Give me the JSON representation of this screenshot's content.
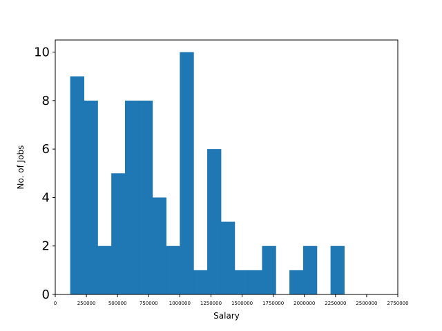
{
  "chart_data": {
    "type": "bar",
    "title": "",
    "xlabel": "Salary",
    "ylabel": "No. of Jobs",
    "bar_color": "#1f77b4",
    "grid": false,
    "xlim": [
      0,
      2750000
    ],
    "ylim": [
      0,
      10.5
    ],
    "x_ticks": [
      0,
      250000,
      500000,
      750000,
      1000000,
      1250000,
      1500000,
      1750000,
      2000000,
      2250000,
      2500000,
      2750000
    ],
    "x_tick_labels": [
      "0",
      "250000",
      "500000",
      "750000",
      "1000000",
      "1250000",
      "1500000",
      "1750000",
      "2000000",
      "2250000",
      "2500000",
      "2750000"
    ],
    "y_ticks": [
      0,
      2,
      4,
      6,
      8,
      10
    ],
    "y_tick_labels": [
      "0",
      "2",
      "4",
      "6",
      "8",
      "10"
    ],
    "bin_edges": [
      120000,
      230000,
      340000,
      450000,
      560000,
      670000,
      780000,
      890000,
      1000000,
      1110000,
      1220000,
      1330000,
      1440000,
      1550000,
      1660000,
      1770000,
      1880000,
      1990000,
      2100000,
      2210000,
      2320000
    ],
    "values": [
      9,
      8,
      2,
      5,
      8,
      8,
      4,
      2,
      10,
      1,
      6,
      3,
      1,
      1,
      2,
      0,
      1,
      2,
      0,
      2
    ]
  }
}
